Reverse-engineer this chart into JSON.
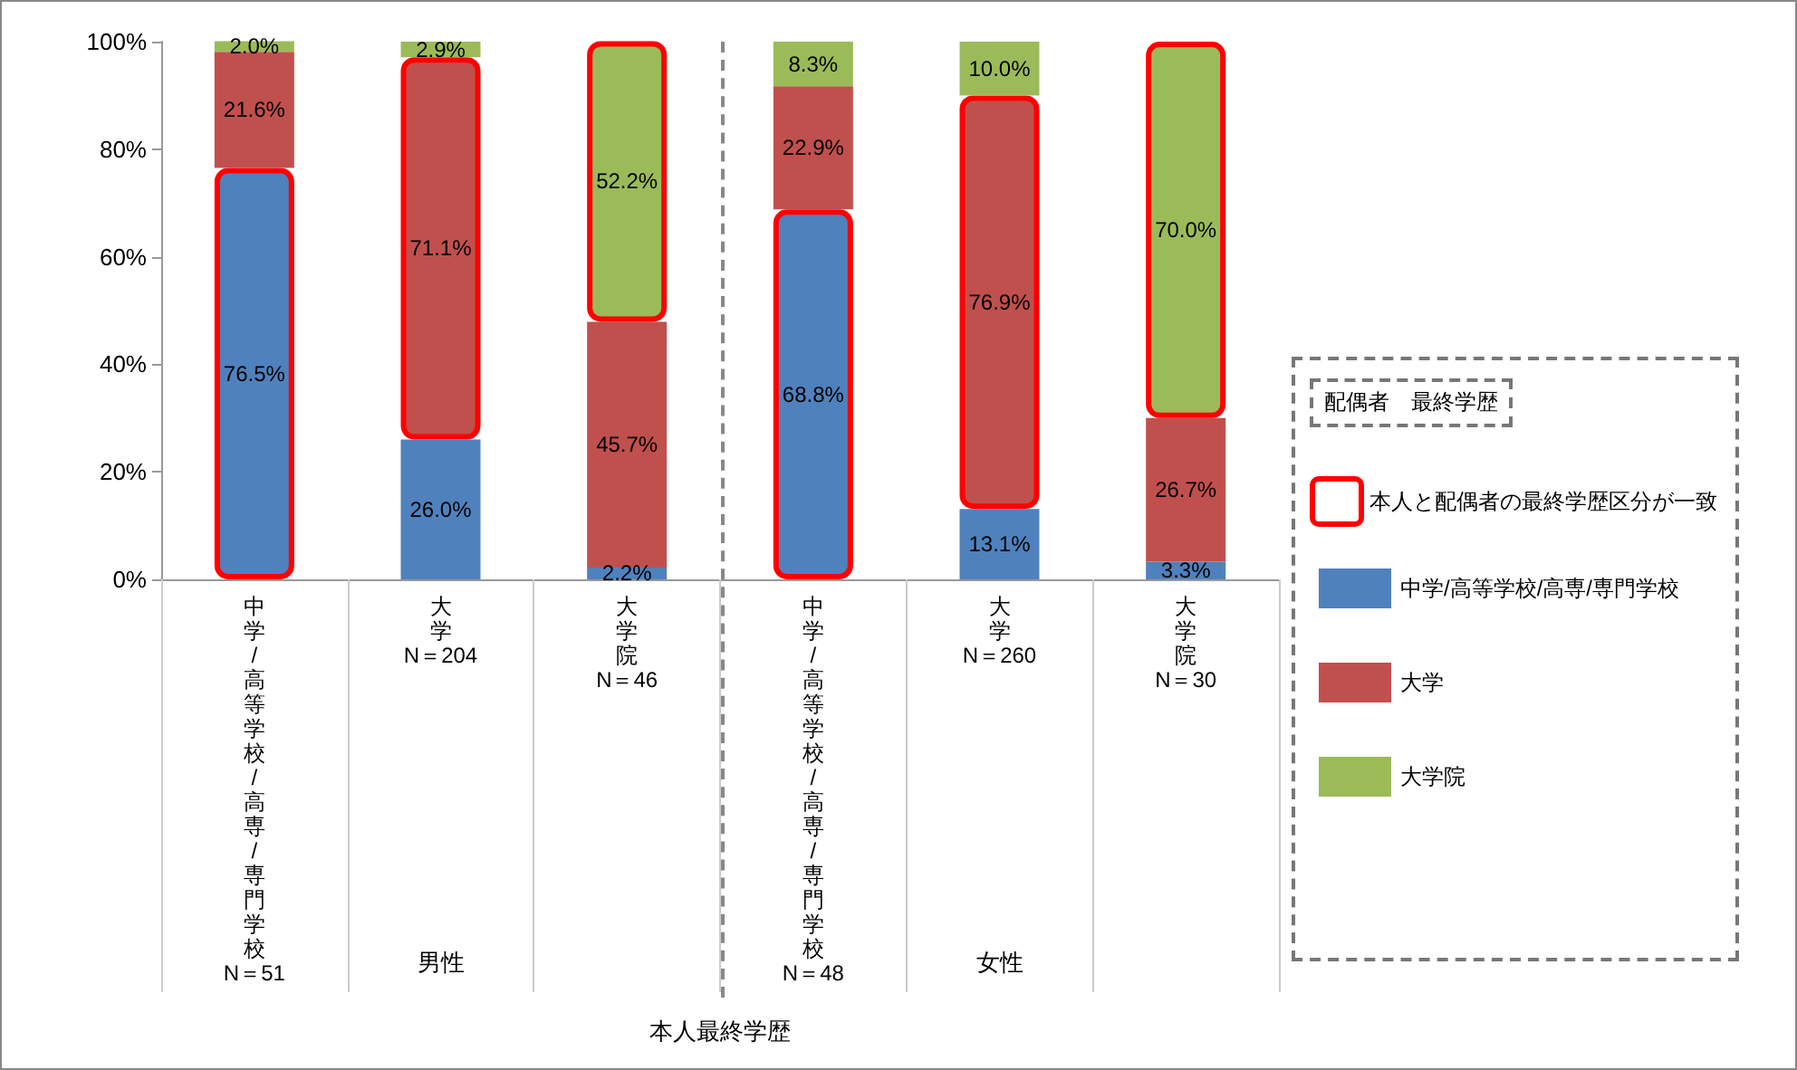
{
  "chart_data": {
    "type": "bar",
    "stacked": true,
    "categories": [
      "中学/高等学校/高専/専門学校\nN＝51",
      "大学\nN＝204",
      "大学院\nN＝46",
      "中学/高等学校/高専/専門学校\nN＝48",
      "大学\nN＝260",
      "大学院\nN＝30"
    ],
    "series": [
      {
        "name": "中学/高等学校/高専/専門学校",
        "color": "#4f81bd",
        "values": [
          76.5,
          26.0,
          2.2,
          68.8,
          13.1,
          3.3
        ],
        "value_labels": [
          "76.5%",
          "26.0%",
          "2.2%",
          "68.8%",
          "13.1%",
          "3.3%"
        ]
      },
      {
        "name": "大学",
        "color": "#c0504d",
        "values": [
          21.6,
          71.1,
          45.7,
          22.9,
          76.9,
          26.7
        ],
        "value_labels": [
          "21.6%",
          "71.1%",
          "45.7%",
          "22.9%",
          "76.9%",
          "26.7%"
        ]
      },
      {
        "name": "大学院",
        "color": "#9bbb59",
        "values": [
          2.0,
          2.9,
          52.2,
          8.3,
          10.0,
          70.0
        ],
        "value_labels": [
          "2.0%",
          "2.9%",
          "52.2%",
          "8.3%",
          "10.0%",
          "70.0%"
        ]
      }
    ],
    "ylim": [
      0,
      100
    ],
    "yticks": [
      {
        "value": 0,
        "label": "0%"
      },
      {
        "value": 20,
        "label": "20%"
      },
      {
        "value": 40,
        "label": "40%"
      },
      {
        "value": 60,
        "label": "60%"
      },
      {
        "value": 80,
        "label": "80%"
      },
      {
        "value": 100,
        "label": "100%"
      }
    ],
    "legend_title": "配偶者　最終学歴",
    "legend": "right",
    "annotations": [
      "男性",
      "女性",
      "本人最終学歴",
      "本人と配偶者の最終学歴区分が一致"
    ]
  }
}
